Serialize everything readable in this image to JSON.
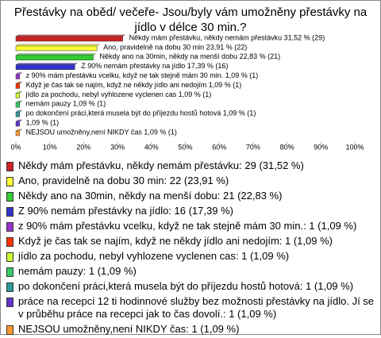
{
  "chart_data": {
    "type": "bar",
    "orientation": "horizontal",
    "title": "Přestávky na oběd/ večeře- Jsou/byly vám umožněny přestávky na jídlo v délce 30 min.?",
    "bar_labels": [
      "Někdy mám přestávku, někdy nemám přestávku 31,52 % (29)",
      "Ano, pravidelně na dobu 30 min 23,91 % (22)",
      "Někdy ano na 30min, někdy na menší dobu 22,83 % (21)",
      "Z 90% nemám přestávky na jídlo 17,39 % (16)",
      "z 90% mám přestávku vcelku, když ne tak stejně mám 30 min. 1,09 % (1)",
      "Když je čas tak se najím, když ne někdy jídlo ani nedojím 1,09 % (1)",
      "jídlo za pochodu, nebyl vyhlozene vyclenen cas 1,09 % (1)",
      "nemám pauzy 1,09 % (1)",
      "po dokončení práci,která musela být do příjezdu hostů hotová 1,09 % (1)",
      "1,09 % (1)",
      "NEJSOU umožněny,není NIKDY čas 1,09 % (1)"
    ],
    "values": [
      31.52,
      23.91,
      22.83,
      17.39,
      1.09,
      1.09,
      1.09,
      1.09,
      1.09,
      1.09,
      1.09
    ],
    "colors": [
      "#cc2222",
      "#ffff33",
      "#33cc33",
      "#3333cc",
      "#9933cc",
      "#ff3300",
      "#ccff33",
      "#33cc66",
      "#339999",
      "#6633cc",
      "#ff9933"
    ],
    "legend": [
      "Někdy mám přestávku, někdy nemám přestávku: 29 (31,52 %)",
      "Ano, pravidelně na dobu 30 min: 22 (23,91 %)",
      "Někdy ano na 30min, někdy na menší dobu: 21 (22,83 %)",
      "Z 90% nemám přestávky na jídlo: 16 (17,39 %)",
      "z 90% mám přestávku vcelku, když ne tak stejně mám 30 min.: 1 (1,09 %)",
      "Když je čas tak se najím, když ne někdy jídlo ani nedojím: 1 (1,09 %)",
      "jídlo za pochodu, nebyl vyhlozene vyclenen cas: 1 (1,09 %)",
      "nemám pauzy: 1 (1,09 %)",
      "po dokončení práci,která musela být do příjezdu hostů hotová: 1 (1,09 %)",
      "práce na recepci 12 ti hodinnové služby bez možnosti přestávky na jídlo. Jí se v průběhu práce na recepci jak to čas dovolí.: 1 (1,09 %)",
      "NEJSOU umožněny,není NIKDY čas: 1 (1,09 %)"
    ],
    "xlim": [
      0,
      100
    ],
    "xticks": [
      {
        "value": 0,
        "label": "0%"
      },
      {
        "value": 10,
        "label": "10%"
      },
      {
        "value": 20,
        "label": "20%"
      },
      {
        "value": 30,
        "label": "30%"
      },
      {
        "value": 40,
        "label": "40%"
      },
      {
        "value": 50,
        "label": "50%"
      },
      {
        "value": 60,
        "label": "60%"
      },
      {
        "value": 70,
        "label": "70%"
      },
      {
        "value": 80,
        "label": "80%"
      },
      {
        "value": 90,
        "label": "90%"
      },
      {
        "value": 100,
        "label": "100%"
      }
    ]
  }
}
